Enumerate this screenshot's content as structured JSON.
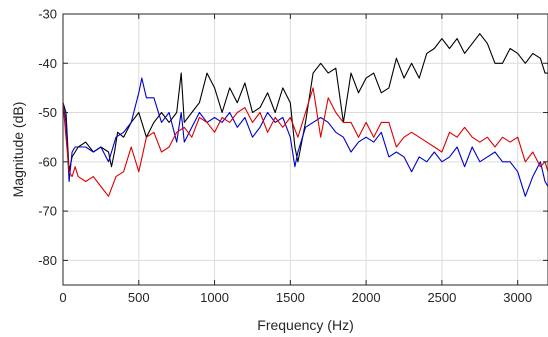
{
  "chart_data": {
    "type": "line",
    "title": "",
    "xlabel": "Frequency (Hz)",
    "ylabel": "Magnitude (dB)",
    "xlim": [
      0,
      3200
    ],
    "ylim": [
      -85,
      -30
    ],
    "grid": true,
    "legend": "none",
    "x_ticks": [
      0,
      500,
      1000,
      1500,
      2000,
      2500,
      3000
    ],
    "x_tick_labels": [
      "0",
      "500",
      "1000",
      "1500",
      "2000",
      "2500",
      "3000"
    ],
    "y_ticks": [
      -80,
      -70,
      -60,
      -50,
      -40,
      -30
    ],
    "y_tick_labels": [
      "-80",
      "-70",
      "-60",
      "-50",
      "-40",
      "-30"
    ],
    "series": [
      {
        "color": "#000000",
        "x": [
          0,
          20,
          40,
          60,
          80,
          100,
          150,
          200,
          250,
          300,
          320,
          340,
          360,
          400,
          450,
          500,
          550,
          600,
          650,
          700,
          750,
          780,
          800,
          850,
          900,
          950,
          1000,
          1050,
          1100,
          1150,
          1200,
          1250,
          1300,
          1350,
          1400,
          1450,
          1500,
          1530,
          1550,
          1600,
          1650,
          1700,
          1750,
          1800,
          1850,
          1900,
          1950,
          2000,
          2050,
          2100,
          2150,
          2200,
          2250,
          2300,
          2350,
          2400,
          2450,
          2500,
          2550,
          2600,
          2650,
          2700,
          2750,
          2800,
          2850,
          2900,
          2950,
          3000,
          3050,
          3100,
          3150,
          3180,
          3200
        ],
        "y": [
          -48,
          -50,
          -62,
          -59,
          -58,
          -57,
          -56,
          -58,
          -57,
          -58,
          -61,
          -58,
          -54,
          -55,
          -52,
          -50,
          -55,
          -52,
          -50,
          -52,
          -50,
          -42,
          -52,
          -50,
          -48,
          -42,
          -45,
          -50,
          -45,
          -48,
          -44,
          -50,
          -49,
          -46,
          -50,
          -45,
          -48,
          -57,
          -60,
          -52,
          -42,
          -40,
          -42,
          -41,
          -52,
          -42,
          -46,
          -43,
          -42,
          -46,
          -45,
          -39,
          -43,
          -40,
          -43,
          -38,
          -37,
          -35,
          -37,
          -35,
          -38,
          -36,
          -34,
          -36,
          -40,
          -40,
          -37,
          -38,
          -40,
          -38,
          -39,
          -42,
          -42
        ]
      },
      {
        "color": "#0000cc",
        "x": [
          0,
          20,
          40,
          60,
          80,
          100,
          150,
          200,
          250,
          300,
          350,
          400,
          450,
          500,
          520,
          550,
          600,
          650,
          700,
          750,
          780,
          800,
          850,
          900,
          950,
          1000,
          1050,
          1100,
          1150,
          1200,
          1250,
          1300,
          1350,
          1400,
          1450,
          1500,
          1530,
          1550,
          1600,
          1650,
          1700,
          1750,
          1800,
          1850,
          1900,
          1950,
          2000,
          2050,
          2100,
          2150,
          2200,
          2250,
          2300,
          2350,
          2400,
          2450,
          2500,
          2550,
          2600,
          2650,
          2700,
          2750,
          2800,
          2850,
          2900,
          2950,
          3000,
          3050,
          3100,
          3150,
          3180,
          3200
        ],
        "y": [
          -48,
          -52,
          -64,
          -58,
          -57,
          -57,
          -57,
          -58,
          -57,
          -60,
          -55,
          -54,
          -52,
          -46,
          -43,
          -47,
          -47,
          -52,
          -50,
          -56,
          -50,
          -56,
          -53,
          -50,
          -52,
          -51,
          -52,
          -50,
          -53,
          -51,
          -55,
          -53,
          -50,
          -52,
          -51,
          -55,
          -61,
          -58,
          -53,
          -52,
          -51,
          -52,
          -54,
          -55,
          -58,
          -56,
          -55,
          -56,
          -54,
          -59,
          -58,
          -59,
          -62,
          -59,
          -60,
          -58,
          -60,
          -59,
          -57,
          -61,
          -57,
          -60,
          -59,
          -58,
          -60,
          -60,
          -62,
          -67,
          -63,
          -60,
          -64,
          -65
        ]
      },
      {
        "color": "#dd0000",
        "x": [
          0,
          20,
          40,
          60,
          80,
          100,
          150,
          200,
          250,
          300,
          350,
          400,
          450,
          500,
          550,
          600,
          650,
          700,
          750,
          800,
          850,
          900,
          950,
          1000,
          1050,
          1100,
          1150,
          1200,
          1250,
          1300,
          1350,
          1400,
          1450,
          1500,
          1550,
          1600,
          1650,
          1700,
          1750,
          1800,
          1850,
          1900,
          1950,
          2000,
          2050,
          2100,
          2150,
          2200,
          2250,
          2300,
          2350,
          2400,
          2450,
          2500,
          2550,
          2600,
          2650,
          2700,
          2750,
          2800,
          2850,
          2900,
          2950,
          3000,
          3050,
          3100,
          3150,
          3180,
          3200
        ],
        "y": [
          -48,
          -55,
          -62,
          -63,
          -61,
          -63,
          -64,
          -63,
          -65,
          -67,
          -63,
          -62,
          -57,
          -62,
          -55,
          -54,
          -58,
          -57,
          -54,
          -53,
          -55,
          -51,
          -52,
          -54,
          -51,
          -52,
          -50,
          -49,
          -52,
          -50,
          -54,
          -51,
          -53,
          -51,
          -55,
          -50,
          -45,
          -55,
          -47,
          -50,
          -52,
          -52,
          -55,
          -52,
          -55,
          -52,
          -52,
          -57,
          -55,
          -54,
          -55,
          -56,
          -57,
          -58,
          -54,
          -55,
          -53,
          -55,
          -56,
          -55,
          -57,
          -55,
          -56,
          -55,
          -60,
          -58,
          -61,
          -60,
          -62
        ]
      }
    ]
  }
}
